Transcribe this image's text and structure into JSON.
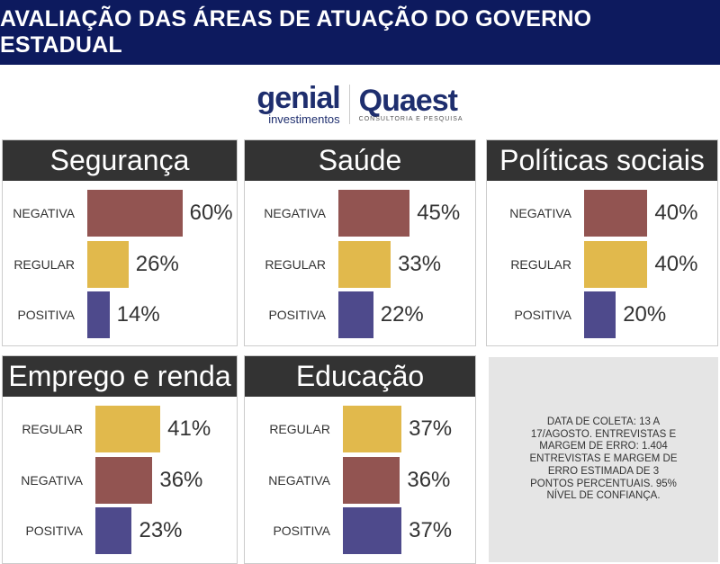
{
  "title": "AVALIAÇÃO DAS ÁREAS DE ATUAÇÃO DO GOVERNO ESTADUAL",
  "logos": {
    "genial": "genial",
    "genial_sub": "investimentos",
    "quaest": "Quaest",
    "quaest_sub": "CONSULTORIA E PESQUISA"
  },
  "colors": {
    "NEGATIVA": "#925451",
    "REGULAR": "#e1b94c",
    "POSITIVA": "#4e4a8c",
    "header": "#333333",
    "title_bg": "#0d1a5e"
  },
  "chart_data": [
    {
      "type": "bar",
      "title": "Segurança",
      "categories": [
        "NEGATIVA",
        "REGULAR",
        "POSITIVA"
      ],
      "values": [
        60,
        26,
        14
      ],
      "labels": [
        "60%",
        "26%",
        "14%"
      ]
    },
    {
      "type": "bar",
      "title": "Saúde",
      "categories": [
        "NEGATIVA",
        "REGULAR",
        "POSITIVA"
      ],
      "values": [
        45,
        33,
        22
      ],
      "labels": [
        "45%",
        "33%",
        "22%"
      ]
    },
    {
      "type": "bar",
      "title": "Políticas sociais",
      "categories": [
        "NEGATIVA",
        "REGULAR",
        "POSITIVA"
      ],
      "values": [
        40,
        40,
        20
      ],
      "labels": [
        "40%",
        "40%",
        "20%"
      ]
    },
    {
      "type": "bar",
      "title": "Emprego e renda",
      "categories": [
        "REGULAR",
        "NEGATIVA",
        "POSITIVA"
      ],
      "values": [
        41,
        36,
        23
      ],
      "labels": [
        "41%",
        "36%",
        "23%"
      ]
    },
    {
      "type": "bar",
      "title": "Educação",
      "categories": [
        "REGULAR",
        "NEGATIVA",
        "POSITIVA"
      ],
      "values": [
        37,
        36,
        37
      ],
      "labels": [
        "37%",
        "36%",
        "37%"
      ]
    }
  ],
  "info": "DATA DE COLETA: 13 A 17/AGOSTO. ENTREVISTAS E MARGEM DE ERRO: 1.404 ENTREVISTAS E MARGEM DE ERRO ESTIMADA DE 3 PONTOS PERCENTUAIS. 95% NÍVEL DE CONFIANÇA."
}
